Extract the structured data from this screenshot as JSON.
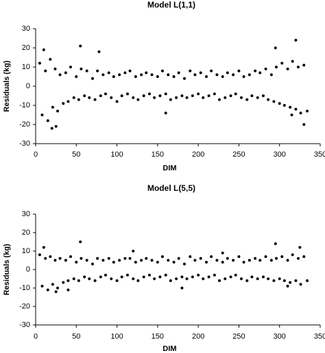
{
  "chart_data": [
    {
      "type": "scatter",
      "title": "Model L(1,1)",
      "x_label": "DIM",
      "y_label": "Residuals (kg)",
      "color": "#000000",
      "xlim": [
        0,
        350
      ],
      "xticks": [
        0,
        50,
        100,
        150,
        200,
        250,
        300,
        350
      ],
      "ylim": [
        -30,
        30
      ],
      "yticks": [
        -30,
        -20,
        -10,
        0,
        10,
        20,
        30
      ],
      "x": [
        5,
        8,
        12,
        15,
        18,
        21,
        24,
        27,
        30,
        34,
        37,
        40,
        43,
        47,
        50,
        53,
        56,
        60,
        63,
        66,
        70,
        73,
        76,
        80,
        83,
        86,
        90,
        93,
        96,
        100,
        103,
        106,
        110,
        113,
        116,
        120,
        123,
        126,
        130,
        133,
        136,
        140,
        143,
        146,
        150,
        153,
        156,
        160,
        163,
        166,
        170,
        173,
        176,
        180,
        183,
        186,
        190,
        193,
        196,
        200,
        203,
        206,
        210,
        213,
        216,
        220,
        223,
        226,
        230,
        233,
        236,
        240,
        243,
        246,
        250,
        253,
        256,
        260,
        263,
        266,
        270,
        273,
        276,
        280,
        283,
        286,
        290,
        293,
        296,
        300,
        303,
        306,
        310,
        313,
        316,
        320,
        323,
        326,
        330,
        334,
        10,
        20,
        25,
        55,
        78,
        160,
        295,
        315,
        320,
        330
      ],
      "y": [
        12,
        -15,
        8,
        -18,
        14,
        -11,
        9,
        -13,
        6,
        -9,
        7,
        -8,
        10,
        -6,
        5,
        -7,
        9,
        -5,
        8,
        -6,
        4,
        -7,
        8,
        -5,
        6,
        -4,
        7,
        -6,
        5,
        -8,
        6,
        -5,
        7,
        -4,
        8,
        -6,
        5,
        -7,
        6,
        -5,
        7,
        -4,
        6,
        -6,
        5,
        -5,
        8,
        -4,
        6,
        -7,
        5,
        -6,
        7,
        -5,
        4,
        -6,
        8,
        -5,
        6,
        -4,
        7,
        -6,
        5,
        -5,
        8,
        -4,
        6,
        -7,
        5,
        -6,
        7,
        -5,
        6,
        -4,
        8,
        -6,
        5,
        -7,
        6,
        -5,
        8,
        -6,
        7,
        -5,
        9,
        -7,
        6,
        -8,
        10,
        -9,
        12,
        -10,
        9,
        -11,
        13,
        -12,
        10,
        -14,
        11,
        -13,
        19,
        -22,
        -21,
        21,
        18,
        -14,
        20,
        -15,
        24,
        -20
      ]
    },
    {
      "type": "scatter",
      "title": "Model L(5,5)",
      "x_label": "DIM",
      "y_label": "Residuals (kg)",
      "color": "#000000",
      "xlim": [
        0,
        350
      ],
      "xticks": [
        0,
        50,
        100,
        150,
        200,
        250,
        300,
        350
      ],
      "ylim": [
        -30,
        30
      ],
      "yticks": [
        -30,
        -20,
        -10,
        0,
        10,
        20,
        30
      ],
      "x": [
        5,
        8,
        12,
        15,
        18,
        21,
        24,
        27,
        30,
        34,
        37,
        40,
        43,
        47,
        50,
        53,
        56,
        60,
        63,
        66,
        70,
        73,
        76,
        80,
        83,
        86,
        90,
        93,
        96,
        100,
        103,
        106,
        110,
        113,
        116,
        120,
        123,
        126,
        130,
        133,
        136,
        140,
        143,
        146,
        150,
        153,
        156,
        160,
        163,
        166,
        170,
        173,
        176,
        180,
        183,
        186,
        190,
        193,
        196,
        200,
        203,
        206,
        210,
        213,
        216,
        220,
        223,
        226,
        230,
        233,
        236,
        240,
        243,
        246,
        250,
        253,
        256,
        260,
        263,
        266,
        270,
        273,
        276,
        280,
        283,
        286,
        290,
        293,
        296,
        300,
        303,
        306,
        310,
        313,
        316,
        320,
        323,
        326,
        330,
        334,
        10,
        25,
        40,
        55,
        120,
        180,
        230,
        295,
        310,
        325
      ],
      "y": [
        8,
        -9,
        6,
        -11,
        7,
        -8,
        5,
        -10,
        6,
        -7,
        5,
        -6,
        7,
        -5,
        4,
        -6,
        6,
        -4,
        5,
        -5,
        3,
        -6,
        6,
        -4,
        5,
        -3,
        6,
        -5,
        4,
        -6,
        5,
        -4,
        6,
        -3,
        6,
        -5,
        4,
        -6,
        5,
        -4,
        6,
        -3,
        5,
        -5,
        4,
        -4,
        7,
        -3,
        5,
        -6,
        4,
        -5,
        6,
        -4,
        3,
        -5,
        7,
        -4,
        5,
        -3,
        6,
        -5,
        4,
        -4,
        7,
        -3,
        5,
        -6,
        4,
        -5,
        6,
        -4,
        5,
        -3,
        7,
        -5,
        4,
        -6,
        5,
        -4,
        6,
        -5,
        5,
        -4,
        7,
        -5,
        5,
        -6,
        6,
        -5,
        7,
        -6,
        5,
        -7,
        8,
        -6,
        6,
        -8,
        7,
        -6,
        12,
        -12,
        -11,
        15,
        10,
        -10,
        9,
        14,
        -9,
        12
      ]
    }
  ]
}
